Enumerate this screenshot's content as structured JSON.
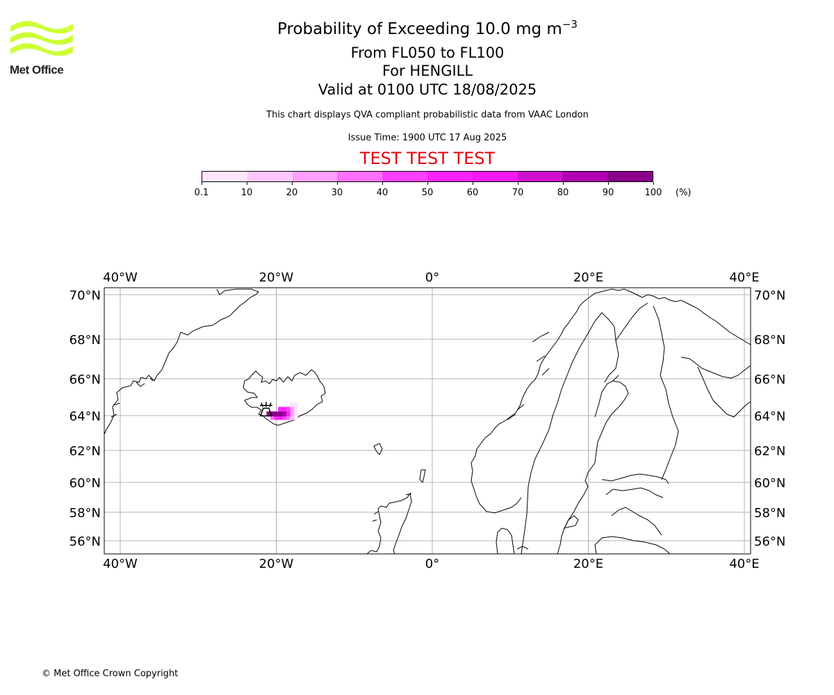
{
  "logo": {
    "text": "Met Office",
    "color": "#ccff33"
  },
  "title": {
    "line1_main": "Probability of Exceeding 10.0 mg m",
    "line1_exp": "−3",
    "line2": "From FL050 to FL100",
    "line3": "For HENGILL",
    "line4": "Valid at 0100 UTC 18/08/2025"
  },
  "notes": {
    "description": "This chart displays QVA compliant probabilistic data from VAAC London",
    "issue_time": "Issue Time: 1900 UTC 17 Aug 2025",
    "test_banner": "TEST TEST TEST"
  },
  "colorbar": {
    "unit": "(%)",
    "ticks": [
      "0.1",
      "10",
      "20",
      "30",
      "40",
      "50",
      "60",
      "70",
      "80",
      "90",
      "100"
    ],
    "colors": [
      "#ffe6ff",
      "#ffc8ff",
      "#ffa0ff",
      "#ff70ff",
      "#ff40ff",
      "#ff22ff",
      "#f31af3",
      "#d010d0",
      "#b000b0",
      "#8a008a",
      "#600060"
    ]
  },
  "map": {
    "lon_labels": [
      "40°W",
      "20°W",
      "0°",
      "20°E",
      "40°E"
    ],
    "lon_values": [
      -40,
      -20,
      0,
      20,
      40
    ],
    "lat_labels": [
      "70°N",
      "68°N",
      "66°N",
      "64°N",
      "62°N",
      "60°N",
      "58°N",
      "56°N"
    ],
    "lat_values": [
      70,
      68,
      66,
      64,
      62,
      60,
      58,
      56
    ],
    "lon_range": [
      -42,
      41
    ],
    "lat_range": [
      55.4,
      70.3
    ],
    "gridline_color": "#b0b0b0",
    "volcano_marker": "Hengill",
    "volcano_position": {
      "lon": -21.3,
      "lat": 64.1
    },
    "ash_probability": [
      {
        "lon": -21.0,
        "lat": 64.1,
        "prob": 95
      },
      {
        "lon": -20.5,
        "lat": 64.1,
        "prob": 95
      },
      {
        "lon": -20.0,
        "lat": 64.1,
        "prob": 95
      },
      {
        "lon": -19.5,
        "lat": 64.1,
        "prob": 92
      },
      {
        "lon": -19.0,
        "lat": 64.1,
        "prob": 85
      },
      {
        "lon": -19.5,
        "lat": 64.35,
        "prob": 55
      },
      {
        "lon": -19.0,
        "lat": 64.35,
        "prob": 55
      },
      {
        "lon": -18.5,
        "lat": 64.35,
        "prob": 45
      },
      {
        "lon": -18.0,
        "lat": 64.35,
        "prob": 25
      },
      {
        "lon": -17.5,
        "lat": 64.35,
        "prob": 8
      },
      {
        "lon": -20.0,
        "lat": 63.9,
        "prob": 50
      },
      {
        "lon": -19.5,
        "lat": 63.9,
        "prob": 55
      },
      {
        "lon": -19.0,
        "lat": 63.9,
        "prob": 45
      },
      {
        "lon": -18.5,
        "lat": 63.9,
        "prob": 35
      },
      {
        "lon": -20.5,
        "lat": 63.9,
        "prob": 35
      },
      {
        "lon": -18.5,
        "lat": 64.1,
        "prob": 55
      },
      {
        "lon": -18.0,
        "lat": 64.1,
        "prob": 25
      },
      {
        "lon": -17.5,
        "lat": 64.1,
        "prob": 8
      },
      {
        "lon": -18.0,
        "lat": 64.6,
        "prob": 5
      },
      {
        "lon": -17.5,
        "lat": 64.6,
        "prob": 3
      },
      {
        "lon": -18.0,
        "lat": 63.9,
        "prob": 15
      },
      {
        "lon": -17.5,
        "lat": 63.9,
        "prob": 5
      }
    ]
  },
  "footer": {
    "copyright": "© Met Office Crown Copyright"
  }
}
